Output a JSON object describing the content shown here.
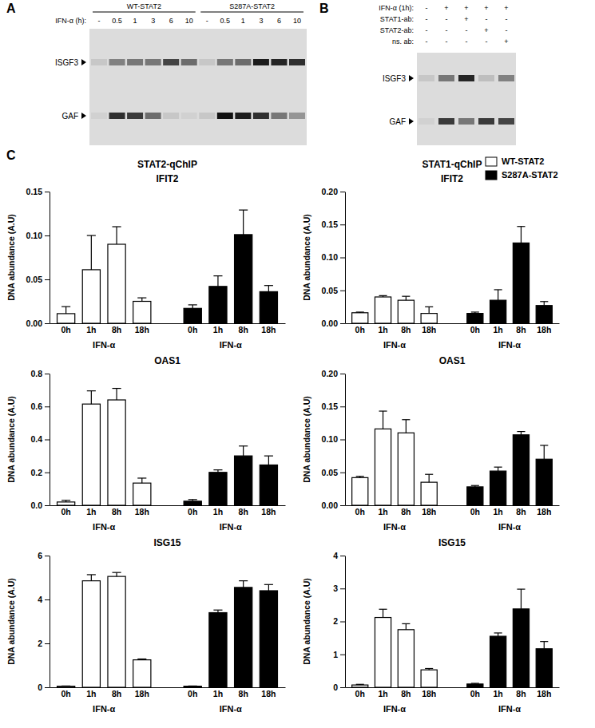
{
  "gel_a": {
    "label": "A",
    "treatment": "IFN-α (h):",
    "groups": [
      {
        "name": "WT-STAT2",
        "lanes": [
          "-",
          "0.5",
          "1",
          "3",
          "6",
          "10"
        ]
      },
      {
        "name": "S287A-STAT2",
        "lanes": [
          "-",
          "0.5",
          "1",
          "3",
          "6",
          "10"
        ]
      }
    ],
    "bands": [
      {
        "name": "ISGF3",
        "intensity": [
          0.1,
          0.45,
          0.5,
          0.5,
          0.75,
          0.55,
          0.1,
          0.5,
          0.55,
          0.95,
          0.9,
          0.85
        ]
      },
      {
        "name": "GAF",
        "intensity": [
          0.05,
          0.85,
          0.8,
          0.55,
          0.1,
          0.05,
          0.1,
          1.0,
          0.95,
          0.85,
          0.5,
          0.35
        ]
      }
    ]
  },
  "gel_b": {
    "label": "B",
    "conditions": [
      {
        "name": "IFN-α (1h):",
        "lanes": [
          "-",
          "+",
          "+",
          "+",
          "+"
        ]
      },
      {
        "name": "STAT1-ab:",
        "lanes": [
          "-",
          "-",
          "+",
          "-",
          "-"
        ]
      },
      {
        "name": "STAT2-ab:",
        "lanes": [
          "-",
          "-",
          "-",
          "+",
          "-"
        ]
      },
      {
        "name": "ns. ab:",
        "lanes": [
          "-",
          "-",
          "-",
          "-",
          "+"
        ]
      }
    ],
    "bands": [
      {
        "name": "ISGF3",
        "intensity": [
          0.1,
          0.5,
          0.9,
          0.15,
          0.45
        ]
      },
      {
        "name": "GAF",
        "intensity": [
          0.05,
          0.8,
          0.5,
          0.8,
          0.75
        ]
      }
    ]
  },
  "panel_c": {
    "label": "C",
    "column_titles": [
      "STAT2-qChIP",
      "STAT1-qChIP"
    ]
  },
  "chart_data": [
    {
      "type": "bar",
      "title": "IFIT2",
      "x_label": "IFN-α",
      "y_label": "DNA abundance (A.U)",
      "categories": [
        "0h",
        "1h",
        "8h",
        "18h"
      ],
      "series": [
        {
          "name": "WT-STAT2",
          "color": "#ffffff",
          "values": [
            0.011,
            0.061,
            0.09,
            0.025
          ],
          "errors": [
            0.008,
            0.039,
            0.02,
            0.004
          ]
        },
        {
          "name": "S287A-STAT2",
          "color": "#000000",
          "values": [
            0.017,
            0.042,
            0.101,
            0.036
          ],
          "errors": [
            0.004,
            0.012,
            0.028,
            0.007
          ]
        }
      ],
      "ylim": [
        0,
        0.15
      ],
      "yticks": [
        {
          "value": 0,
          "label": "0.00"
        },
        0.05,
        {
          "value": 0.1,
          "label": "0.10"
        },
        0.15
      ],
      "grid": false
    },
    {
      "type": "bar",
      "title": "IFIT2",
      "x_label": "IFN-α",
      "y_label": "DNA abundance (A.U)",
      "categories": [
        "0h",
        "1h",
        "8h",
        "18h"
      ],
      "series": [
        {
          "name": "WT-STAT2",
          "color": "#ffffff",
          "values": [
            0.016,
            0.04,
            0.035,
            0.015
          ],
          "errors": [
            0.001,
            0.002,
            0.006,
            0.01
          ]
        },
        {
          "name": "S287A-STAT2",
          "color": "#000000",
          "values": [
            0.015,
            0.035,
            0.122,
            0.027
          ],
          "errors": [
            0.002,
            0.016,
            0.025,
            0.006
          ]
        }
      ],
      "ylim": [
        0,
        0.2
      ],
      "yticks": [
        {
          "value": 0,
          "label": "0.00"
        },
        0.05,
        {
          "value": 0.1,
          "label": "0.10"
        },
        0.15,
        {
          "value": 0.2,
          "label": "0.20"
        }
      ],
      "grid": false,
      "legend": "upper right"
    },
    {
      "type": "bar",
      "title": "OAS1",
      "x_label": "IFN-α",
      "y_label": "DNA abundance (A.U)",
      "categories": [
        "0h",
        "1h",
        "8h",
        "18h"
      ],
      "series": [
        {
          "name": "WT-STAT2",
          "color": "#ffffff",
          "values": [
            0.02,
            0.615,
            0.64,
            0.135
          ],
          "errors": [
            0.01,
            0.08,
            0.07,
            0.03
          ]
        },
        {
          "name": "S287A-STAT2",
          "color": "#000000",
          "values": [
            0.025,
            0.2,
            0.3,
            0.245
          ],
          "errors": [
            0.01,
            0.015,
            0.06,
            0.055
          ]
        }
      ],
      "ylim": [
        0,
        0.8
      ],
      "yticks": [
        {
          "value": 0,
          "label": "0.0"
        },
        0.2,
        0.4,
        0.6,
        0.8
      ],
      "grid": false
    },
    {
      "type": "bar",
      "title": "OAS1",
      "x_label": "IFN-α",
      "y_label": "DNA abundance (A.U)",
      "categories": [
        "0h",
        "1h",
        "8h",
        "18h"
      ],
      "series": [
        {
          "name": "WT-STAT2",
          "color": "#ffffff",
          "values": [
            0.042,
            0.116,
            0.11,
            0.035
          ],
          "errors": [
            0.002,
            0.027,
            0.02,
            0.012
          ]
        },
        {
          "name": "S287A-STAT2",
          "color": "#000000",
          "values": [
            0.028,
            0.052,
            0.107,
            0.07
          ],
          "errors": [
            0.002,
            0.006,
            0.005,
            0.021
          ]
        }
      ],
      "ylim": [
        0,
        0.2
      ],
      "yticks": [
        {
          "value": 0,
          "label": "0.00"
        },
        0.05,
        {
          "value": 0.1,
          "label": "0.10"
        },
        0.15,
        {
          "value": 0.2,
          "label": "0.20"
        }
      ],
      "grid": false
    },
    {
      "type": "bar",
      "title": "ISG15",
      "x_label": "IFN-α",
      "y_label": "DNA abundance (A.U)",
      "categories": [
        "0h",
        "1h",
        "8h",
        "18h"
      ],
      "series": [
        {
          "name": "WT-STAT2",
          "color": "#ffffff",
          "values": [
            0.05,
            4.85,
            5.05,
            1.25
          ],
          "errors": [
            0.01,
            0.28,
            0.18,
            0.04
          ]
        },
        {
          "name": "S287A-STAT2",
          "color": "#000000",
          "values": [
            0.05,
            3.4,
            4.55,
            4.4
          ],
          "errors": [
            0.01,
            0.12,
            0.3,
            0.28
          ]
        }
      ],
      "ylim": [
        0,
        6
      ],
      "yticks": [
        0,
        2,
        4,
        6
      ],
      "grid": false
    },
    {
      "type": "bar",
      "title": "ISG15",
      "x_label": "IFN-α",
      "y_label": "DNA abundance (A.U)",
      "categories": [
        "0h",
        "1h",
        "8h",
        "18h"
      ],
      "series": [
        {
          "name": "WT-STAT2",
          "color": "#ffffff",
          "values": [
            0.07,
            2.12,
            1.75,
            0.53
          ],
          "errors": [
            0.02,
            0.25,
            0.18,
            0.04
          ]
        },
        {
          "name": "S287A-STAT2",
          "color": "#000000",
          "values": [
            0.1,
            1.55,
            2.38,
            1.17
          ],
          "errors": [
            0.02,
            0.1,
            0.6,
            0.22
          ]
        }
      ],
      "ylim": [
        0,
        4
      ],
      "yticks": [
        0,
        1,
        2,
        3,
        4
      ],
      "grid": false
    }
  ]
}
